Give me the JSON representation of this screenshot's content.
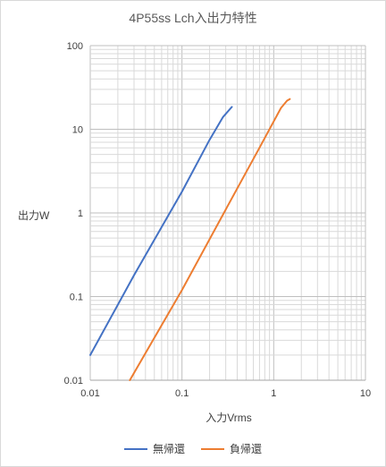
{
  "chart_data": {
    "type": "line",
    "title": "4P55ss Lch入出力特性",
    "xlabel": "入力Vrms",
    "ylabel": "出力W",
    "x_scale": "log",
    "y_scale": "log",
    "xlim": [
      0.01,
      10
    ],
    "ylim": [
      0.01,
      100
    ],
    "x_ticks": [
      "0.01",
      "0.1",
      "1",
      "10"
    ],
    "y_ticks": [
      "0.01",
      "0.1",
      "1",
      "10",
      "100"
    ],
    "grid": true,
    "legend_position": "bottom",
    "series": [
      {
        "name": "無帰還",
        "color": "#4472c4",
        "points": [
          [
            0.01,
            0.02
          ],
          [
            0.03,
            0.18
          ],
          [
            0.1,
            1.8
          ],
          [
            0.2,
            7.5
          ],
          [
            0.28,
            14
          ],
          [
            0.35,
            18.5
          ]
        ]
      },
      {
        "name": "負帰還",
        "color": "#ed7d31",
        "points": [
          [
            0.027,
            0.01
          ],
          [
            0.1,
            0.12
          ],
          [
            0.3,
            1.1
          ],
          [
            0.7,
            6
          ],
          [
            1.2,
            18
          ],
          [
            1.4,
            22
          ],
          [
            1.5,
            23
          ]
        ]
      }
    ]
  }
}
